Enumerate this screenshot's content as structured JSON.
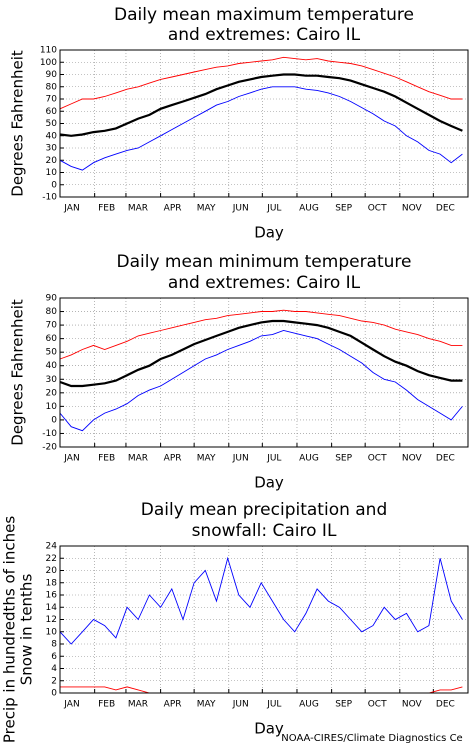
{
  "chart_data": [
    {
      "type": "line",
      "title": "Daily mean maximum temperature",
      "subtitle": "and extremes: Cairo IL",
      "xlabel": "Day",
      "ylabel": "Degrees Fahrenheit",
      "x": [
        1,
        11,
        21,
        31,
        41,
        51,
        61,
        71,
        81,
        91,
        101,
        111,
        121,
        131,
        141,
        151,
        161,
        171,
        181,
        191,
        201,
        211,
        221,
        231,
        241,
        251,
        261,
        271,
        281,
        291,
        301,
        311,
        321,
        331,
        341,
        351,
        361
      ],
      "xlim": [
        1,
        366
      ],
      "xticks": [
        {
          "value": 1,
          "label": "JAN"
        },
        {
          "value": 32,
          "label": "FEB"
        },
        {
          "value": 60,
          "label": "MAR"
        },
        {
          "value": 91,
          "label": "APR"
        },
        {
          "value": 121,
          "label": "MAY"
        },
        {
          "value": 152,
          "label": "JUN"
        },
        {
          "value": 182,
          "label": "JUL"
        },
        {
          "value": 213,
          "label": "AUG"
        },
        {
          "value": 244,
          "label": "SEP"
        },
        {
          "value": 274,
          "label": "OCT"
        },
        {
          "value": 305,
          "label": "NOV"
        },
        {
          "value": 335,
          "label": "DEC"
        }
      ],
      "ylim": [
        -10,
        110
      ],
      "yticks": [
        -10,
        0,
        10,
        20,
        30,
        40,
        50,
        60,
        70,
        80,
        90,
        100,
        110
      ],
      "grid": true,
      "series": [
        {
          "color": "#ff0000",
          "values": [
            62,
            66,
            70,
            70,
            72,
            75,
            78,
            80,
            83,
            86,
            88,
            90,
            92,
            94,
            96,
            97,
            99,
            100,
            101,
            102,
            104,
            103,
            102,
            103,
            101,
            100,
            99,
            97,
            94,
            91,
            88,
            84,
            80,
            76,
            73,
            70,
            70
          ]
        },
        {
          "color": "#000000",
          "values": [
            41,
            40,
            41,
            43,
            44,
            46,
            50,
            54,
            57,
            62,
            65,
            68,
            71,
            74,
            78,
            81,
            84,
            86,
            88,
            89,
            90,
            90,
            89,
            89,
            88,
            87,
            85,
            82,
            79,
            76,
            72,
            67,
            62,
            57,
            52,
            48,
            44
          ]
        },
        {
          "color": "#0000ff",
          "values": [
            20,
            15,
            12,
            18,
            22,
            25,
            28,
            30,
            35,
            40,
            45,
            50,
            55,
            60,
            65,
            68,
            72,
            75,
            78,
            80,
            80,
            80,
            78,
            77,
            75,
            72,
            68,
            63,
            58,
            52,
            48,
            40,
            35,
            28,
            25,
            18,
            25
          ]
        }
      ]
    },
    {
      "type": "line",
      "title": "Daily mean minimum temperature",
      "subtitle": "and extremes: Cairo IL",
      "xlabel": "Day",
      "ylabel": "Degrees Fahrenheit",
      "x": [
        1,
        11,
        21,
        31,
        41,
        51,
        61,
        71,
        81,
        91,
        101,
        111,
        121,
        131,
        141,
        151,
        161,
        171,
        181,
        191,
        201,
        211,
        221,
        231,
        241,
        251,
        261,
        271,
        281,
        291,
        301,
        311,
        321,
        331,
        341,
        351,
        361
      ],
      "xlim": [
        1,
        366
      ],
      "xticks": [
        {
          "value": 1,
          "label": "JAN"
        },
        {
          "value": 32,
          "label": "FEB"
        },
        {
          "value": 60,
          "label": "MAR"
        },
        {
          "value": 91,
          "label": "APR"
        },
        {
          "value": 121,
          "label": "MAY"
        },
        {
          "value": 152,
          "label": "JUN"
        },
        {
          "value": 182,
          "label": "JUL"
        },
        {
          "value": 213,
          "label": "AUG"
        },
        {
          "value": 244,
          "label": "SEP"
        },
        {
          "value": 274,
          "label": "OCT"
        },
        {
          "value": 305,
          "label": "NOV"
        },
        {
          "value": 335,
          "label": "DEC"
        }
      ],
      "ylim": [
        -20,
        90
      ],
      "yticks": [
        -20,
        -10,
        0,
        10,
        20,
        30,
        40,
        50,
        60,
        70,
        80,
        90
      ],
      "grid": true,
      "series": [
        {
          "color": "#ff0000",
          "values": [
            45,
            48,
            52,
            55,
            52,
            55,
            58,
            62,
            64,
            66,
            68,
            70,
            72,
            74,
            75,
            77,
            78,
            79,
            80,
            80,
            81,
            80,
            80,
            79,
            78,
            77,
            75,
            73,
            72,
            70,
            67,
            65,
            63,
            60,
            58,
            55,
            55
          ]
        },
        {
          "color": "#000000",
          "values": [
            28,
            25,
            25,
            26,
            27,
            29,
            33,
            37,
            40,
            45,
            48,
            52,
            56,
            59,
            62,
            65,
            68,
            70,
            72,
            73,
            73,
            72,
            71,
            70,
            68,
            65,
            62,
            57,
            52,
            47,
            43,
            40,
            36,
            33,
            31,
            29,
            29
          ]
        },
        {
          "color": "#0000ff",
          "values": [
            5,
            -5,
            -8,
            0,
            5,
            8,
            12,
            18,
            22,
            25,
            30,
            35,
            40,
            45,
            48,
            52,
            55,
            58,
            62,
            63,
            66,
            64,
            62,
            60,
            56,
            52,
            47,
            42,
            35,
            30,
            28,
            22,
            15,
            10,
            5,
            0,
            10
          ]
        }
      ]
    },
    {
      "type": "line",
      "title": "Daily mean precipitation and",
      "subtitle": "snowfall: Cairo IL",
      "xlabel": "Day",
      "ylabel": [
        "Precip in hundredths of inches",
        "Snow in tenths"
      ],
      "x": [
        1,
        11,
        21,
        31,
        41,
        51,
        61,
        71,
        81,
        91,
        101,
        111,
        121,
        131,
        141,
        151,
        161,
        171,
        181,
        191,
        201,
        211,
        221,
        231,
        241,
        251,
        261,
        271,
        281,
        291,
        301,
        311,
        321,
        331,
        341,
        351,
        361
      ],
      "xlim": [
        1,
        366
      ],
      "xticks": [
        {
          "value": 1,
          "label": "JAN"
        },
        {
          "value": 32,
          "label": "FEB"
        },
        {
          "value": 60,
          "label": "MAR"
        },
        {
          "value": 91,
          "label": "APR"
        },
        {
          "value": 121,
          "label": "MAY"
        },
        {
          "value": 152,
          "label": "JUN"
        },
        {
          "value": 182,
          "label": "JUL"
        },
        {
          "value": 213,
          "label": "AUG"
        },
        {
          "value": 244,
          "label": "SEP"
        },
        {
          "value": 274,
          "label": "OCT"
        },
        {
          "value": 305,
          "label": "NOV"
        },
        {
          "value": 335,
          "label": "DEC"
        }
      ],
      "ylim": [
        0,
        24
      ],
      "yticks": [
        0,
        2,
        4,
        6,
        8,
        10,
        12,
        14,
        16,
        18,
        20,
        22,
        24
      ],
      "grid": true,
      "series": [
        {
          "color": "#0000ff",
          "values": [
            10,
            8,
            10,
            12,
            11,
            9,
            14,
            12,
            16,
            14,
            17,
            12,
            18,
            20,
            15,
            22,
            16,
            14,
            18,
            15,
            12,
            10,
            13,
            17,
            15,
            14,
            12,
            10,
            11,
            14,
            12,
            13,
            10,
            11,
            22,
            15,
            12
          ]
        },
        {
          "color": "#ff0000",
          "values": [
            1,
            1,
            1,
            1,
            1,
            0.5,
            1,
            0.5,
            0,
            0,
            0,
            0,
            0,
            0,
            0,
            0,
            0,
            0,
            0,
            0,
            0,
            0,
            0,
            0,
            0,
            0,
            0,
            0,
            0,
            0,
            0,
            0,
            0,
            0,
            0.5,
            0.5,
            1
          ]
        }
      ]
    }
  ],
  "footer": "NOAA-CIRES/Climate Diagnostics Ce"
}
